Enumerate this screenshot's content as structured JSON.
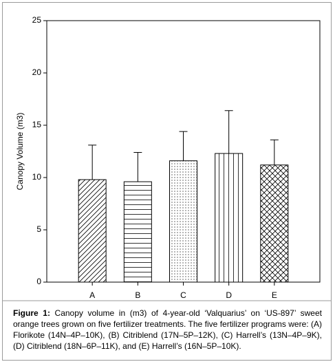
{
  "chart_data": {
    "type": "bar",
    "ylabel": "Canopy Volume (m3)",
    "categories": [
      "A",
      "B",
      "C",
      "D",
      "E"
    ],
    "values": [
      9.8,
      9.6,
      11.6,
      12.3,
      11.2
    ],
    "errors": [
      3.3,
      2.8,
      2.8,
      4.1,
      2.4
    ],
    "patterns": [
      "diagonal",
      "horizontal",
      "dots",
      "vertical",
      "crosshatch"
    ],
    "color": "#000000",
    "ylim": [
      0,
      25
    ],
    "yticks": [
      0,
      5,
      10,
      15,
      20,
      25
    ],
    "caption_label": "Figure 1:",
    "caption": "Canopy volume in (m3) of 4-year-old ‘Valquarius’ on ‘US-897’ sweet orange trees grown on five fertilizer treatments. The five fertilizer programs were: (A) Florikote (14N–4P–10K), (B) Citriblend (17N–5P–12K), (C) Harrell’s (13N–4P–9K), (D) Citriblend (18N–6P–11K), and (E) Harrell’s (16N–5P–10K)."
  }
}
